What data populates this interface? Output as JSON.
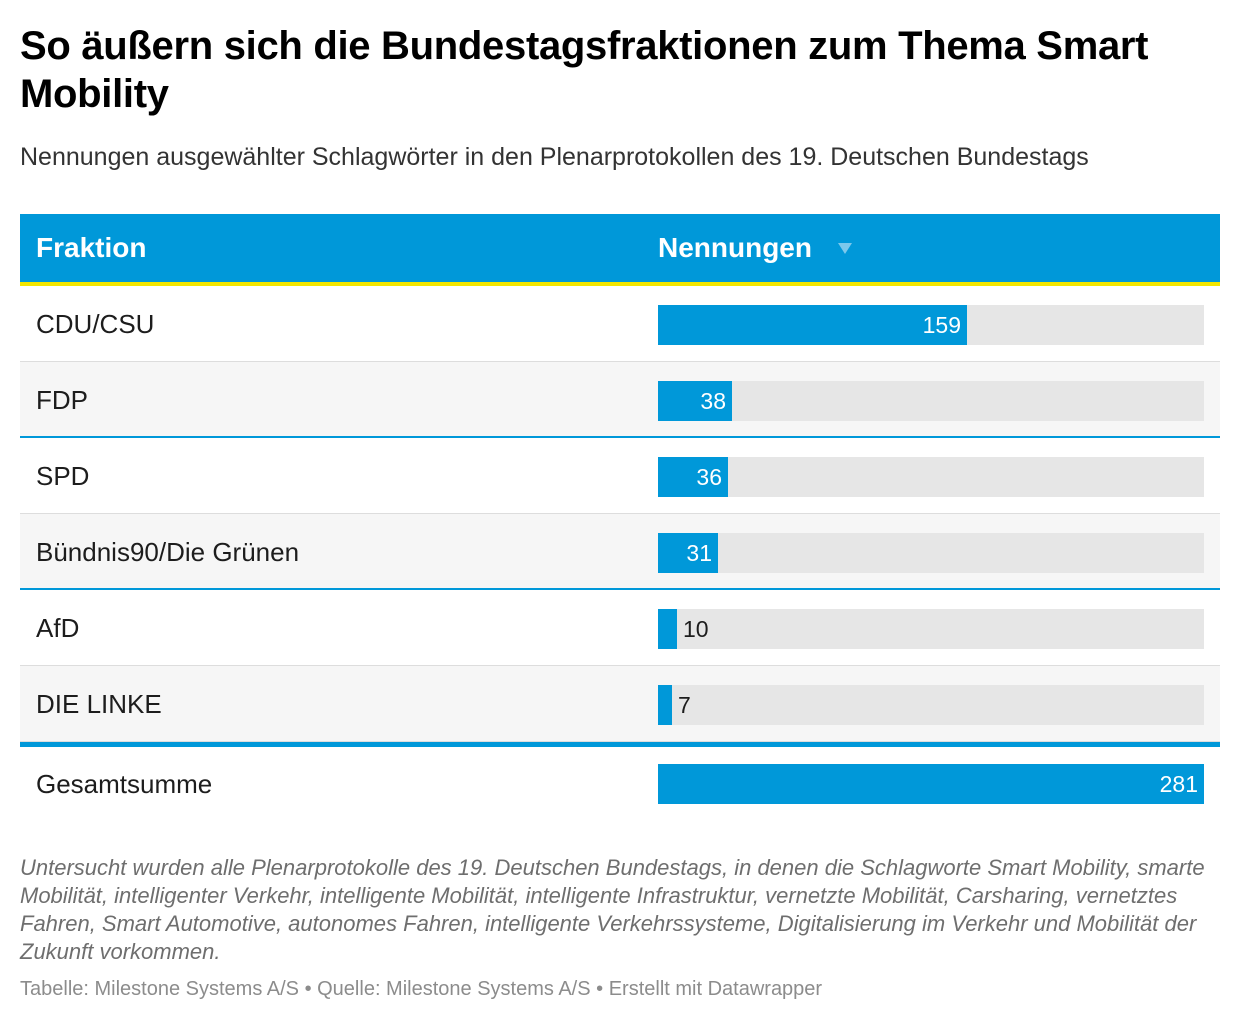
{
  "title": "So äußern sich die Bundestagsfraktionen zum Thema Smart Mobility",
  "subtitle": "Nennungen ausgewählter Schlagwörter in den Plenarprotokollen des 19. Deutschen Bundestags",
  "table": {
    "header_fraktion": "Fraktion",
    "header_nennungen": "Nennungen",
    "sort_icon": "sort-descending-triangle"
  },
  "colors": {
    "bar": "#0098d9",
    "track": "#e6e6e6",
    "header_bg": "#0098d9",
    "header_underline": "#f3e600"
  },
  "chart_data": {
    "type": "table",
    "columns": [
      "Fraktion",
      "Nennungen"
    ],
    "max": 281,
    "rows": [
      {
        "fraktion": "CDU/CSU",
        "nennungen": 159
      },
      {
        "fraktion": "FDP",
        "nennungen": 38
      },
      {
        "fraktion": "SPD",
        "nennungen": 36
      },
      {
        "fraktion": "Bündnis90/Die Grünen",
        "nennungen": 31
      },
      {
        "fraktion": "AfD",
        "nennungen": 10
      },
      {
        "fraktion": "DIE LINKE",
        "nennungen": 7
      }
    ],
    "total": {
      "fraktion": "Gesamtsumme",
      "nennungen": 281
    }
  },
  "notes": "Untersucht wurden alle Plenarprotokolle des 19. Deutschen Bundestags, in denen die Schlagworte Smart Mobility, smarte Mobilität, intelligenter Verkehr, intelligente Mobilität, intelligente Infrastruktur, vernetzte Mobilität, Carsharing, vernetztes Fahren, Smart Automotive, autonomes Fahren, intelligente Verkehrssysteme, Digitalisierung im Verkehr und Mobilität der Zukunft vorkommen.",
  "footer": "Tabelle: Milestone Systems A/S • Quelle: Milestone Systems A/S • Erstellt mit Datawrapper"
}
